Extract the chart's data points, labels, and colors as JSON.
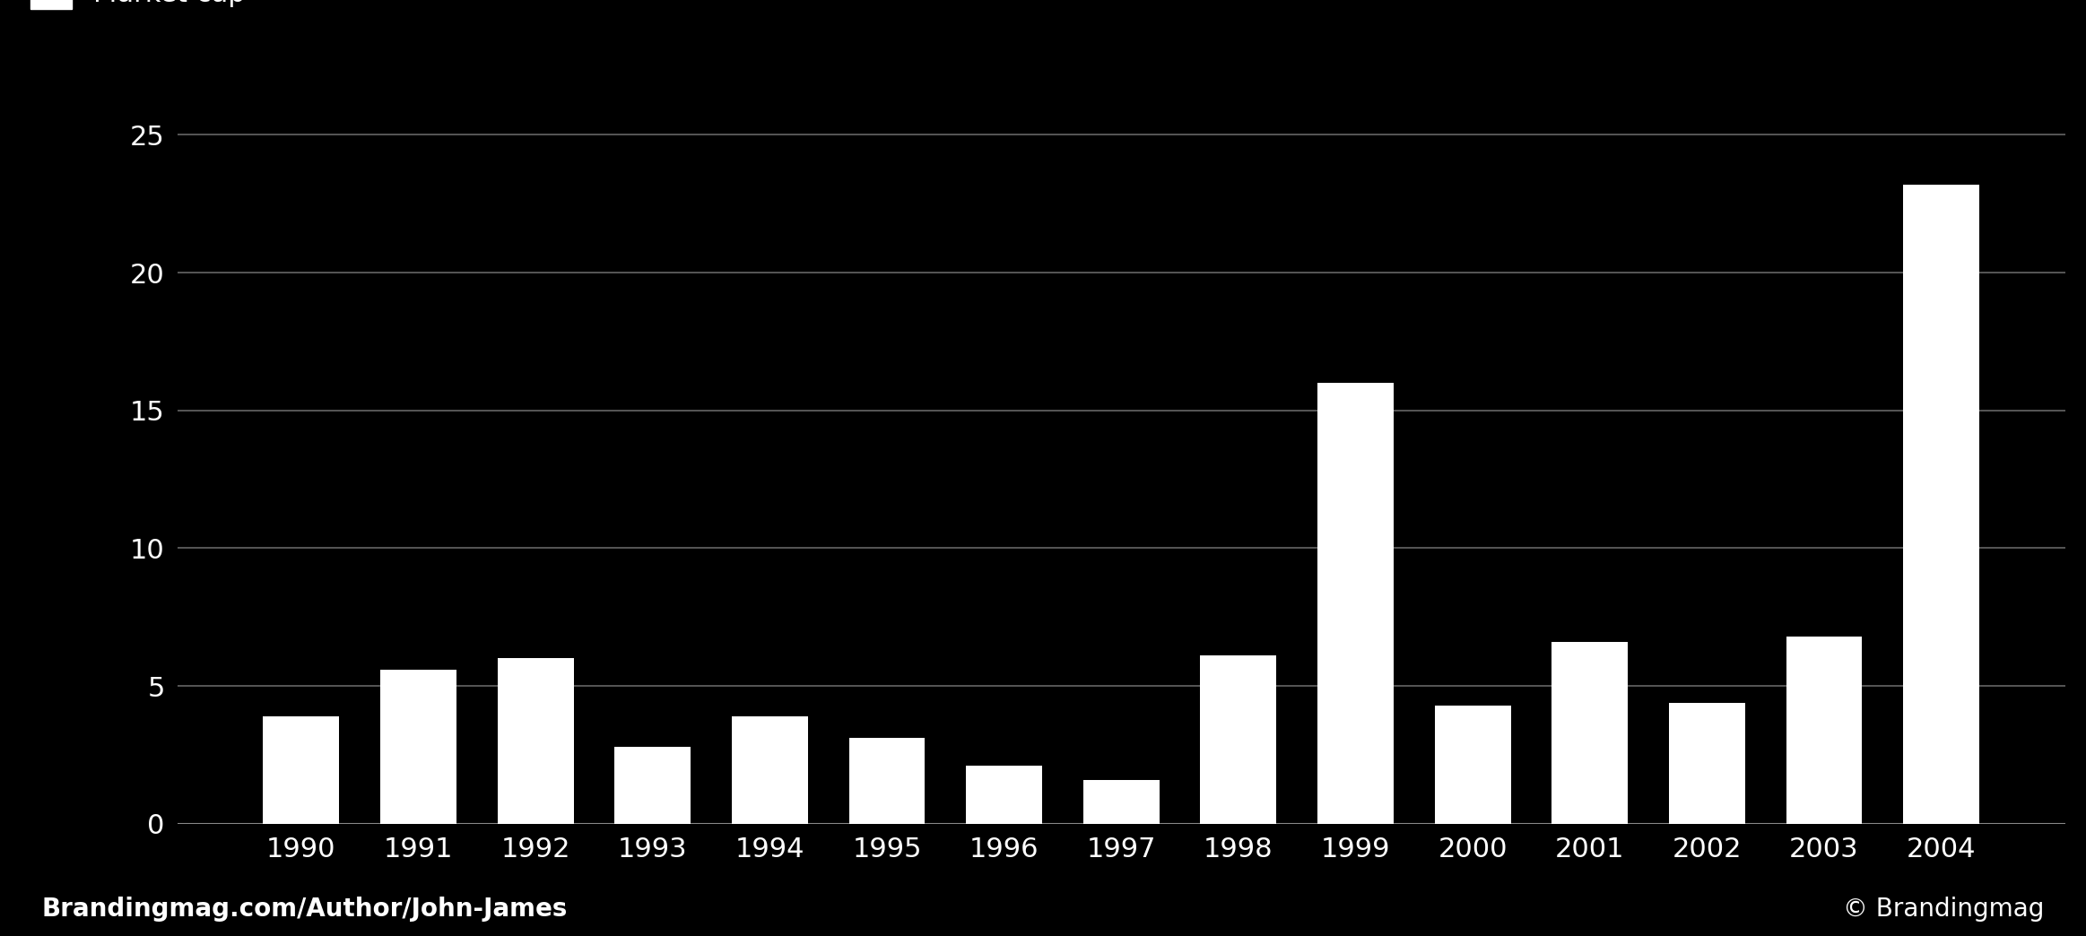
{
  "years": [
    "1990",
    "1991",
    "1992",
    "1993",
    "1994",
    "1995",
    "1996",
    "1997",
    "1998",
    "1999",
    "2000",
    "2001",
    "2002",
    "2003",
    "2004"
  ],
  "values": [
    3.9,
    5.6,
    6.0,
    2.8,
    3.9,
    3.1,
    2.1,
    1.6,
    6.1,
    16.0,
    4.3,
    6.6,
    4.4,
    6.8,
    23.2
  ],
  "bar_color": "#ffffff",
  "background_color": "#000000",
  "text_color": "#ffffff",
  "grid_color": "#666666",
  "axis_color": "#888888",
  "ylabel_ticks": [
    0,
    5,
    10,
    15,
    20,
    25
  ],
  "ylim": [
    0,
    26.5
  ],
  "footer_left": "Brandingmag.com/Author/John-James",
  "footer_right": "© Brandingmag",
  "tick_fontsize": 22,
  "legend_fontsize": 22,
  "footer_fontsize": 20
}
